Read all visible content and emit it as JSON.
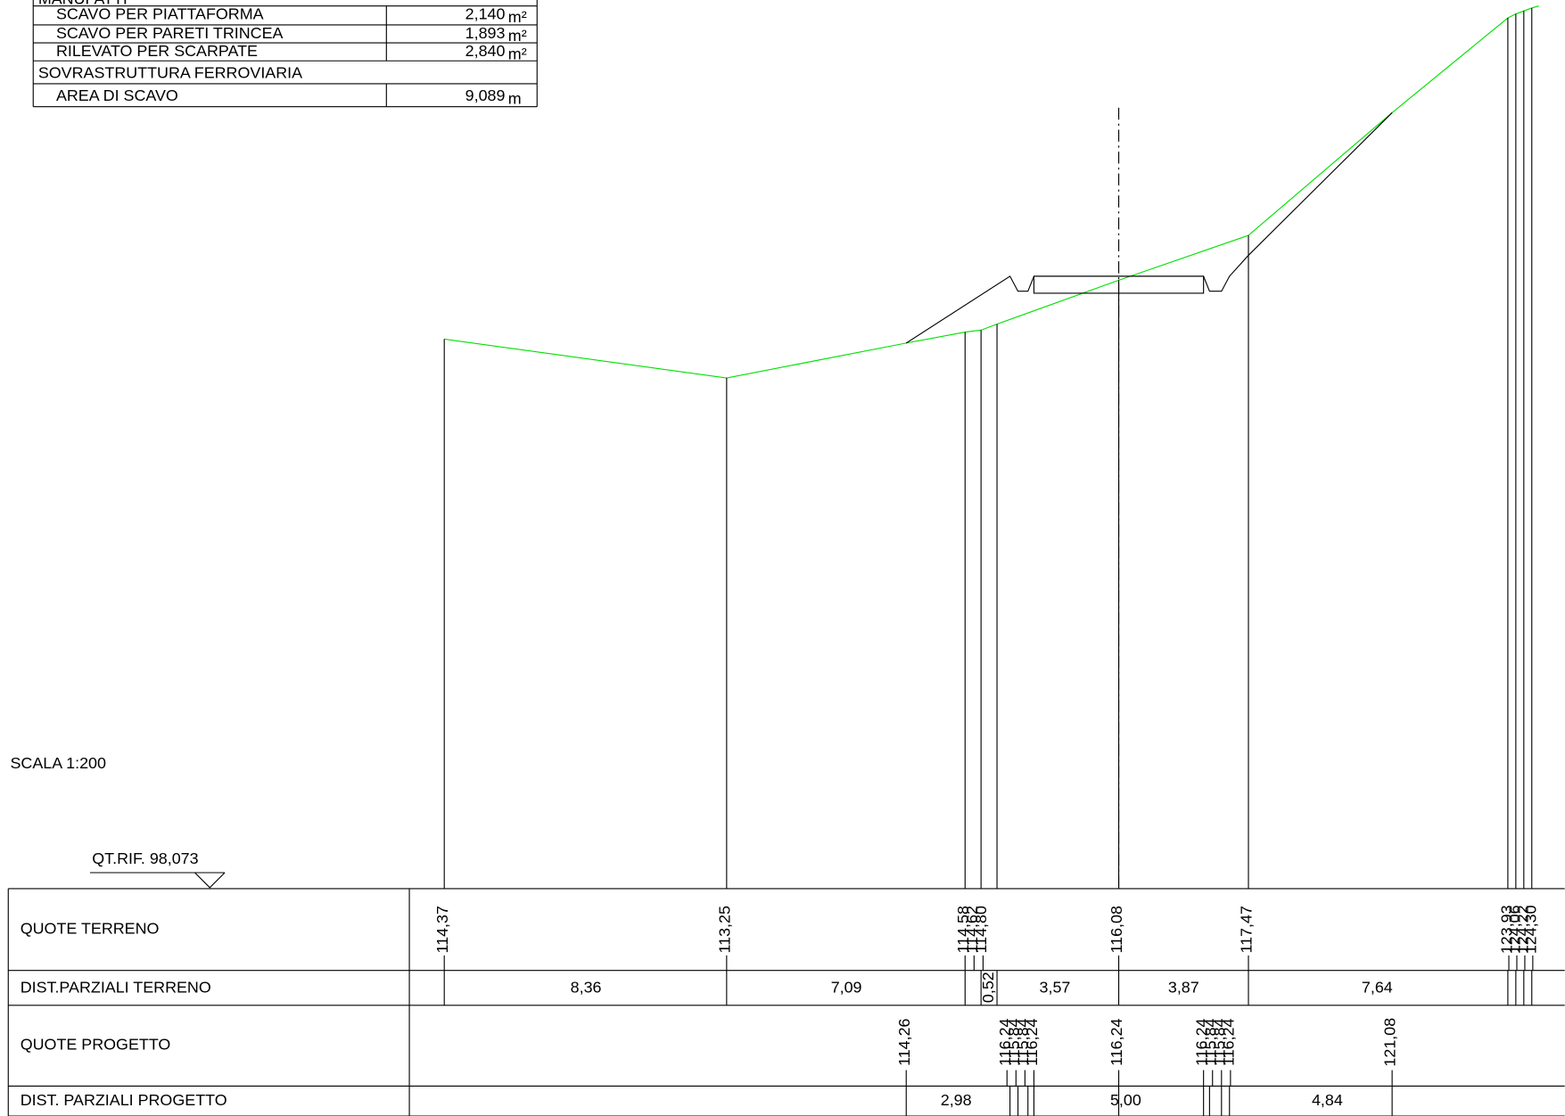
{
  "summary_table": {
    "rows": [
      {
        "label": "MANUFATTI"
      },
      {
        "label": "SCAVO PER PIATTAFORMA",
        "value": "2,140",
        "unit": "m²"
      },
      {
        "label": "SCAVO PER PARETI TRINCEA",
        "value": "1,893",
        "unit": "m²"
      },
      {
        "label": "RILEVATO PER SCARPATE",
        "value": "2,840",
        "unit": "m²"
      },
      {
        "label": "SOVRASTRUTTURA FERROVIARIA"
      },
      {
        "label": "AREA DI SCAVO",
        "value": "9,089",
        "unit": "m"
      }
    ]
  },
  "scale": "SCALA 1:200",
  "reference": "QT.RIF. 98,073",
  "profile_table": {
    "rows": [
      {
        "label": "QUOTE TERRENO",
        "values": [
          "114,37",
          "113,25",
          "114,58",
          "114,62",
          "114,80",
          "116,08",
          "117,47",
          "123,93",
          "124,06",
          "124,22",
          "124,30"
        ]
      },
      {
        "label": "DIST.PARZIALI TERRENO",
        "values": [
          "8,36",
          "7,09",
          "0,52",
          "3,57",
          "3,87",
          "7,64"
        ]
      },
      {
        "label": "QUOTE PROGETTO",
        "values": [
          "114,26",
          "116,24",
          "115,84",
          "115,84",
          "116,24",
          "116,24",
          "116,24",
          "115,84",
          "115,84",
          "116,24",
          "121,08"
        ]
      },
      {
        "label": "DIST. PARZIALI PROGETTO",
        "values": [
          "2,98",
          "5,00",
          "4,84"
        ]
      }
    ]
  }
}
